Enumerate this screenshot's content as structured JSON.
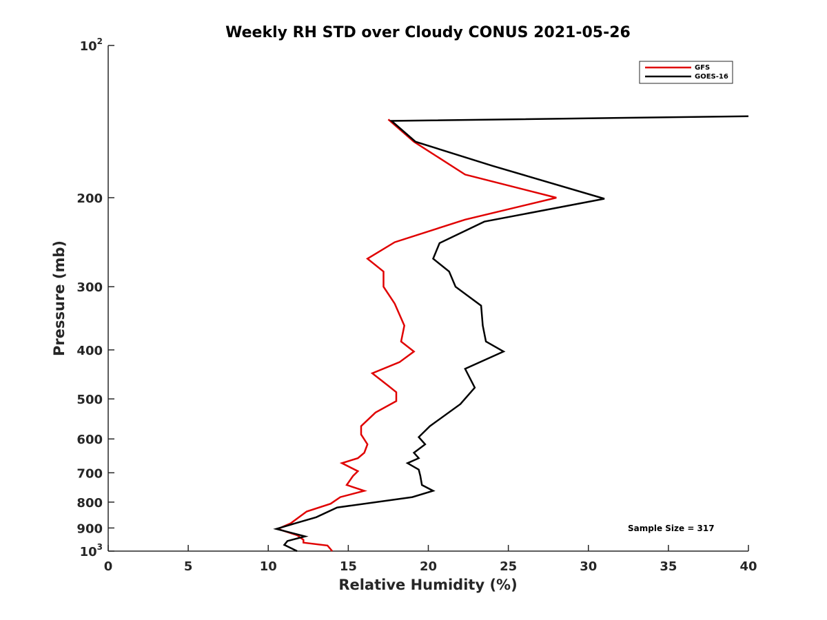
{
  "chart_data": {
    "type": "line",
    "title": "Weekly RH STD over Cloudy CONUS 2021-05-26",
    "xlabel": "Relative Humidity (%)",
    "ylabel": "Pressure (mb)",
    "xlim": [
      0,
      40
    ],
    "ylim": [
      100,
      1000
    ],
    "yscale": "log",
    "y_reversed": true,
    "x_ticks": [
      0,
      5,
      10,
      15,
      20,
      25,
      30,
      35,
      40
    ],
    "x_tick_labels": [
      "0",
      "5",
      "10",
      "15",
      "20",
      "25",
      "30",
      "35",
      "40"
    ],
    "y_ticks": [
      100,
      200,
      300,
      400,
      500,
      600,
      700,
      800,
      900,
      1000
    ],
    "y_tick_labels": [
      {
        "base": "10",
        "sup": "2"
      },
      {
        "base": "200"
      },
      {
        "base": "300"
      },
      {
        "base": "400"
      },
      {
        "base": "500"
      },
      {
        "base": "600"
      },
      {
        "base": "700"
      },
      {
        "base": "800"
      },
      {
        "base": "900"
      },
      {
        "base": "10",
        "sup": "3"
      }
    ],
    "legend_position": "top-right",
    "annotation": "Sample Size = 317",
    "series": [
      {
        "name": "GFS",
        "color": "#e00000",
        "points": [
          [
            17.5,
            140
          ],
          [
            19.1,
            155
          ],
          [
            22.3,
            180
          ],
          [
            28.0,
            200
          ],
          [
            22.3,
            221
          ],
          [
            17.9,
            245
          ],
          [
            16.2,
            264
          ],
          [
            17.2,
            280
          ],
          [
            17.2,
            300
          ],
          [
            17.9,
            324
          ],
          [
            18.5,
            358
          ],
          [
            18.3,
            385
          ],
          [
            19.1,
            403
          ],
          [
            18.2,
            423
          ],
          [
            16.5,
            445
          ],
          [
            17.5,
            471
          ],
          [
            18.0,
            485
          ],
          [
            18.0,
            505
          ],
          [
            16.7,
            532
          ],
          [
            15.8,
            566
          ],
          [
            15.8,
            588
          ],
          [
            16.2,
            615
          ],
          [
            16.0,
            639
          ],
          [
            15.6,
            655
          ],
          [
            14.6,
            670
          ],
          [
            15.6,
            695
          ],
          [
            15.3,
            710
          ],
          [
            14.9,
            740
          ],
          [
            16.0,
            760
          ],
          [
            14.5,
            782
          ],
          [
            13.9,
            806
          ],
          [
            12.4,
            835
          ],
          [
            11.4,
            881
          ],
          [
            10.6,
            904
          ],
          [
            11.8,
            930
          ],
          [
            12.2,
            950
          ],
          [
            12.2,
            962
          ],
          [
            13.7,
            975
          ],
          [
            14.0,
            1000
          ]
        ]
      },
      {
        "name": "GOES-16",
        "color": "#000000",
        "points": [
          [
            40.0,
            138
          ],
          [
            17.7,
            141
          ],
          [
            19.2,
            155
          ],
          [
            24.0,
            173
          ],
          [
            31.0,
            201
          ],
          [
            23.5,
            223
          ],
          [
            20.7,
            246
          ],
          [
            20.3,
            264
          ],
          [
            21.3,
            280
          ],
          [
            21.7,
            300
          ],
          [
            23.3,
            327
          ],
          [
            23.4,
            358
          ],
          [
            23.6,
            385
          ],
          [
            24.7,
            403
          ],
          [
            22.3,
            436
          ],
          [
            22.9,
            475
          ],
          [
            22.0,
            512
          ],
          [
            20.1,
            566
          ],
          [
            19.4,
            595
          ],
          [
            19.8,
            615
          ],
          [
            19.1,
            639
          ],
          [
            19.4,
            655
          ],
          [
            18.7,
            670
          ],
          [
            19.4,
            690
          ],
          [
            19.5,
            710
          ],
          [
            19.6,
            740
          ],
          [
            20.3,
            760
          ],
          [
            19.0,
            782
          ],
          [
            14.3,
            820
          ],
          [
            13.0,
            857
          ],
          [
            11.7,
            881
          ],
          [
            10.5,
            904
          ],
          [
            12.3,
            935
          ],
          [
            11.2,
            955
          ],
          [
            11.0,
            972
          ],
          [
            11.8,
            1000
          ]
        ]
      }
    ]
  }
}
